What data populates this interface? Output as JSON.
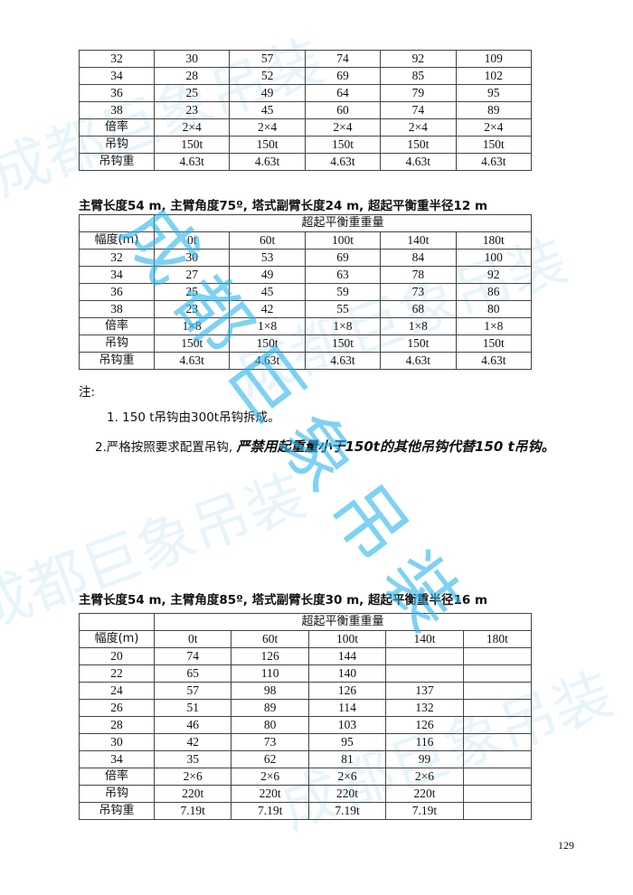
{
  "watermark": "成都巨象吊装",
  "table1": {
    "rows": [
      [
        "32",
        "30",
        "57",
        "74",
        "92",
        "109"
      ],
      [
        "34",
        "28",
        "52",
        "69",
        "85",
        "102"
      ],
      [
        "36",
        "25",
        "49",
        "64",
        "79",
        "95"
      ],
      [
        "38",
        "23",
        "45",
        "60",
        "74",
        "89"
      ],
      [
        "倍率",
        "2×4",
        "2×4",
        "2×4",
        "2×4",
        "2×4"
      ],
      [
        "吊钩",
        "150t",
        "150t",
        "150t",
        "150t",
        "150t"
      ],
      [
        "吊钩重",
        "4.63t",
        "4.63t",
        "4.63t",
        "4.63t",
        "4.63t"
      ]
    ]
  },
  "table2": {
    "title": "主臂长度54 m, 主臂角度75º, 塔式副臂长度24 m, 超起平衡重半径12 m",
    "group_header": "超起平衡重重量",
    "columns": [
      "幅度(m)",
      "0t",
      "60t",
      "100t",
      "140t",
      "180t"
    ],
    "rows": [
      [
        "32",
        "30",
        "53",
        "69",
        "84",
        "100"
      ],
      [
        "34",
        "27",
        "49",
        "63",
        "78",
        "92"
      ],
      [
        "36",
        "25",
        "45",
        "59",
        "73",
        "86"
      ],
      [
        "38",
        "23",
        "42",
        "55",
        "68",
        "80"
      ],
      [
        "倍率",
        "1×8",
        "1×8",
        "1×8",
        "1×8",
        "1×8"
      ],
      [
        "吊钩",
        "150t",
        "150t",
        "150t",
        "150t",
        "150t"
      ],
      [
        "吊钩重",
        "4.63t",
        "4.63t",
        "4.63t",
        "4.63t",
        "4.63t"
      ]
    ]
  },
  "notes": {
    "heading": "注:",
    "item1": "1. 150 t吊钩由300t吊钩拆成。",
    "item2_plain": "2.严格按照要求配置吊钩,",
    "item2_emph": "严禁用起重量小于150t的其他吊钩代替150 t吊钩。"
  },
  "table3": {
    "title": "主臂长度54 m, 主臂角度85º, 塔式副臂长度30 m, 超起平衡重半径16 m",
    "group_header": "超起平衡重重量",
    "columns": [
      "幅度(m)",
      "0t",
      "60t",
      "100t",
      "140t",
      "180t"
    ],
    "rows": [
      [
        "20",
        "74",
        "126",
        "144",
        "",
        ""
      ],
      [
        "22",
        "65",
        "110",
        "140",
        "",
        ""
      ],
      [
        "24",
        "57",
        "98",
        "126",
        "137",
        ""
      ],
      [
        "26",
        "51",
        "89",
        "114",
        "132",
        ""
      ],
      [
        "28",
        "46",
        "80",
        "103",
        "126",
        ""
      ],
      [
        "30",
        "42",
        "73",
        "95",
        "116",
        ""
      ],
      [
        "34",
        "35",
        "62",
        "81",
        "99",
        ""
      ],
      [
        "倍率",
        "2×6",
        "2×6",
        "2×6",
        "2×6",
        ""
      ],
      [
        "吊钩",
        "220t",
        "220t",
        "220t",
        "220t",
        ""
      ],
      [
        "吊钩重",
        "7.19t",
        "7.19t",
        "7.19t",
        "7.19t",
        ""
      ]
    ]
  },
  "page_number": "129"
}
